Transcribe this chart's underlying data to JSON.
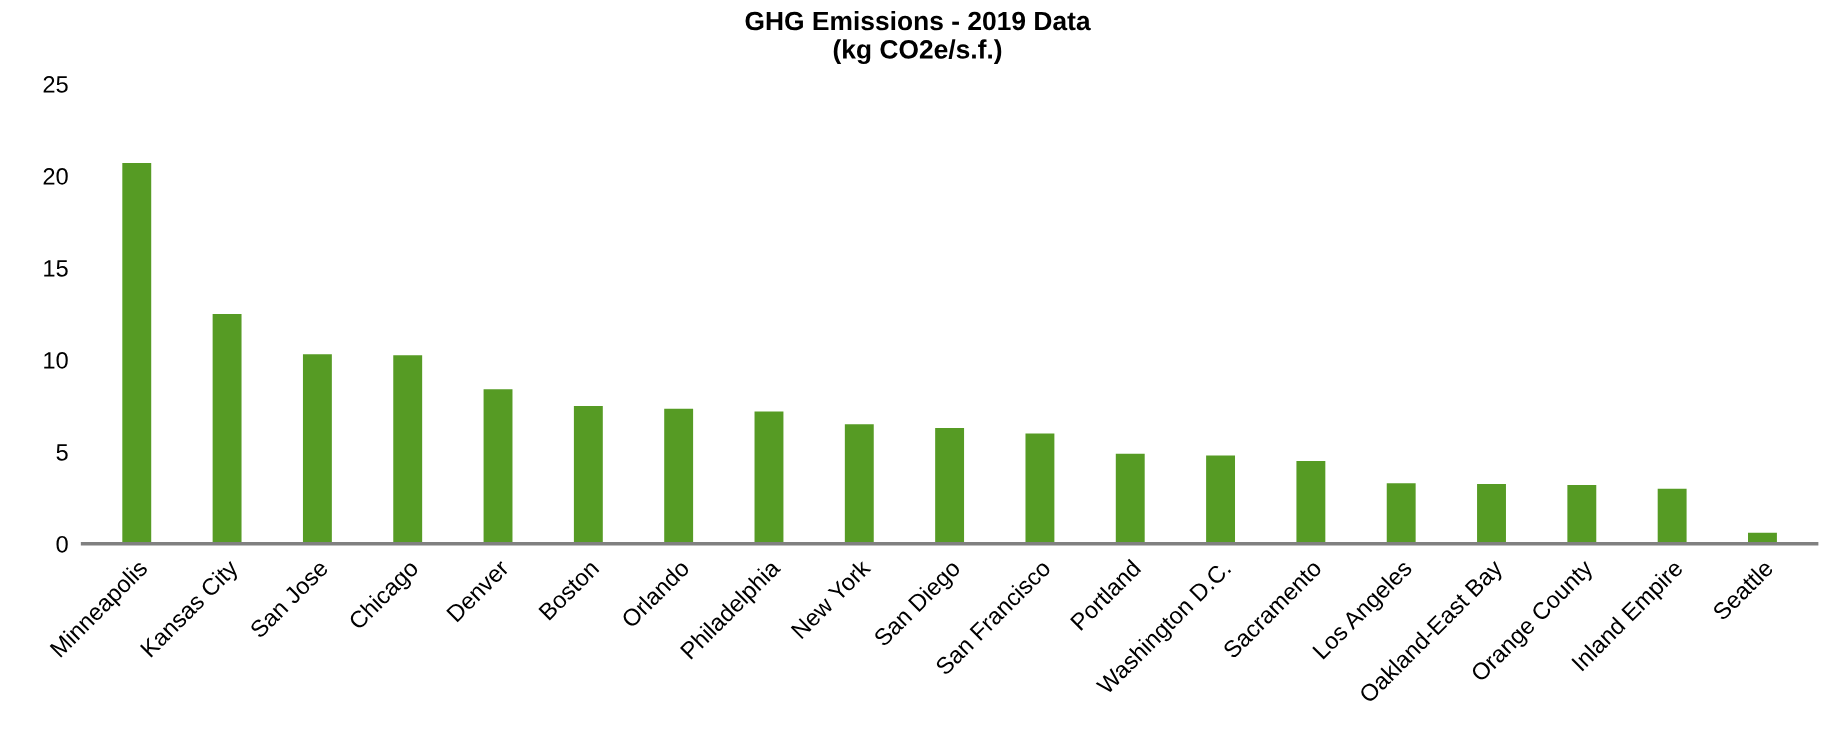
{
  "chart_data": {
    "type": "bar",
    "title": "GHG Emissions - 2019 Data\n(kg CO2e/s.f.)",
    "categories": [
      "Minneapolis",
      "Kansas City",
      "San Jose",
      "Chicago",
      "Denver",
      "Boston",
      "Orlando",
      "Philadelphia",
      "New York",
      "San Diego",
      "San Francisco",
      "Portland",
      "Washington D.C.",
      "Sacramento",
      "Los Angeles",
      "Oakland-East Bay",
      "Orange County",
      "Inland Empire",
      "Seattle"
    ],
    "values": [
      20.7,
      12.5,
      10.3,
      10.25,
      8.4,
      7.5,
      7.35,
      7.2,
      6.5,
      6.3,
      6.0,
      4.9,
      4.8,
      4.5,
      3.3,
      3.25,
      3.2,
      3.0,
      0.6
    ],
    "color": "#569b24",
    "ylim": [
      0,
      25
    ],
    "yticks": [
      0,
      5,
      10,
      15,
      20,
      25
    ],
    "grid": false
  }
}
